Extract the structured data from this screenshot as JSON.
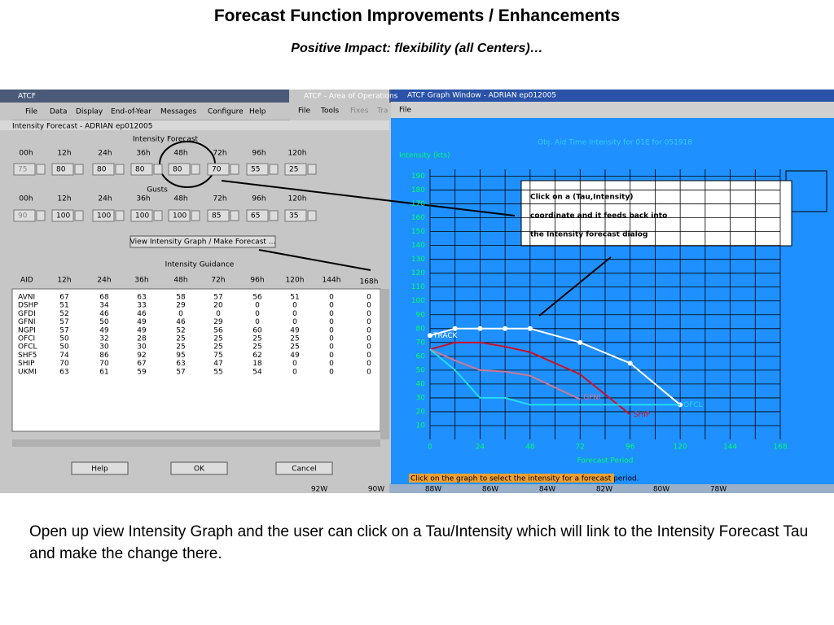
{
  "slide": {
    "title": "Forecast Function Improvements / Enhancements",
    "subtitle": "Positive Impact: flexibility (all Centers)…",
    "callout": [
      "Click on a (Tau,Intensity)",
      "coordinate and it feeds back into",
      "the Intensity forecast dialog"
    ],
    "body": "Open up view Intensity Graph and the user can click on a Tau/Intensity which will link to the Intensity Forecast Tau and make the change there."
  },
  "main_window": {
    "title": "ATCF",
    "menu": [
      "File",
      "Data",
      "Display",
      "End-of-Year",
      "Messages",
      "Configure",
      "Help"
    ]
  },
  "area_window": {
    "title": "ATCF - Area of Operations",
    "menu": [
      "File",
      "Tools",
      "Fixes",
      "Tra"
    ],
    "map_labels": [
      "92W",
      "90W",
      "88W",
      "86W",
      "84W",
      "82W",
      "80W",
      "78W"
    ]
  },
  "dialog": {
    "title": "Intensity Forecast - ADRIAN ep012005",
    "forecast_label": "Intensity Forecast",
    "forecast_taus": [
      "00h",
      "12h",
      "24h",
      "36h",
      "48h",
      "72h",
      "96h",
      "120h"
    ],
    "forecast_values": [
      75,
      80,
      80,
      80,
      80,
      70,
      55,
      25
    ],
    "gusts_label": "Gusts",
    "gust_taus": [
      "00h",
      "12h",
      "24h",
      "36h",
      "48h",
      "72h",
      "96h",
      "120h"
    ],
    "gust_values": [
      90,
      100,
      100,
      100,
      100,
      85,
      65,
      35
    ],
    "graph_button": "View Intensity Graph / Make Forecast ...",
    "guidance_label": "Intensity Guidance",
    "guidance_columns": [
      "AID",
      "12h",
      "24h",
      "36h",
      "48h",
      "72h",
      "96h",
      "120h",
      "144h",
      "168h"
    ],
    "guidance_rows": [
      [
        "AVNI",
        67,
        68,
        63,
        58,
        57,
        56,
        51,
        0,
        0
      ],
      [
        "DSHP",
        51,
        34,
        33,
        29,
        20,
        0,
        0,
        0,
        0
      ],
      [
        "GFDI",
        52,
        46,
        46,
        0,
        0,
        0,
        0,
        0,
        0
      ],
      [
        "GFNI",
        57,
        50,
        49,
        46,
        29,
        0,
        0,
        0,
        0
      ],
      [
        "NGPI",
        57,
        49,
        49,
        52,
        56,
        60,
        49,
        0,
        0
      ],
      [
        "OFCI",
        50,
        32,
        28,
        25,
        25,
        25,
        25,
        0,
        0
      ],
      [
        "OFCL",
        50,
        30,
        30,
        25,
        25,
        25,
        25,
        0,
        0
      ],
      [
        "SHF5",
        74,
        86,
        92,
        95,
        75,
        62,
        49,
        0,
        0
      ],
      [
        "SHIP",
        70,
        70,
        67,
        63,
        47,
        18,
        0,
        0,
        0
      ],
      [
        "UKMI",
        63,
        61,
        59,
        57,
        55,
        54,
        0,
        0,
        0
      ]
    ],
    "buttons": [
      "Help",
      "OK",
      "Cancel"
    ]
  },
  "graph_window": {
    "title": "ATCF Graph Window - ADRIAN ep012005",
    "menu": [
      "File"
    ],
    "status": "Click on the graph to select the intensity for a forecast period.",
    "chart": {
      "type": "line",
      "title": "Obj. Aid Time Intensity for 01E for 051918",
      "y_label": "Intensity (kts)",
      "x_label": "Forecast Period",
      "xlim": [
        0,
        168
      ],
      "xticks": [
        0,
        24,
        48,
        72,
        96,
        120,
        144,
        168
      ],
      "ylim": [
        0,
        195
      ],
      "yticks": [
        10,
        20,
        30,
        40,
        50,
        60,
        70,
        80,
        90,
        100,
        110,
        120,
        130,
        140,
        150,
        160,
        170,
        180,
        190
      ],
      "grid": true,
      "series": [
        {
          "name": "TRACK",
          "color": "#ffffff",
          "x": [
            0,
            12,
            24,
            36,
            48,
            72,
            96,
            120
          ],
          "values": [
            75,
            80,
            80,
            80,
            80,
            70,
            55,
            25
          ]
        },
        {
          "name": "SHIP",
          "color": "#cc1122",
          "x": [
            0,
            12,
            24,
            36,
            48,
            72,
            96
          ],
          "values": [
            65,
            70,
            70,
            67,
            63,
            47,
            18
          ]
        },
        {
          "name": "GFNI",
          "color": "#d07890",
          "x": [
            0,
            12,
            24,
            36,
            48,
            72
          ],
          "values": [
            65,
            57,
            50,
            49,
            46,
            29
          ]
        },
        {
          "name": "OFCL",
          "color": "#22ddee",
          "x": [
            0,
            12,
            24,
            36,
            48,
            72,
            96,
            120
          ],
          "values": [
            65,
            50,
            30,
            30,
            25,
            25,
            25,
            25
          ]
        }
      ]
    }
  }
}
